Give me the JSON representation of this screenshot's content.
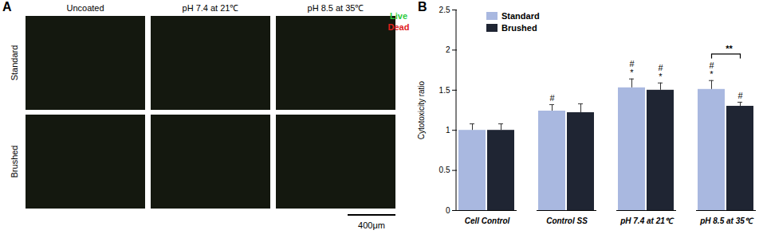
{
  "panel_a": {
    "label": "A",
    "columns": [
      "Uncoated",
      "pH 7.4 at 21℃",
      "pH 8.5 at 35℃"
    ],
    "rows": [
      "Standard",
      "Brushed"
    ],
    "legend": [
      {
        "text": "Live",
        "color": "#2ecc40"
      },
      {
        "text": "Dead",
        "color": "#e0201b"
      }
    ],
    "scale_bar": "400μm"
  },
  "panel_b_label": "B",
  "chart_data": {
    "type": "bar",
    "y_label": "Cytotoxicity ratio",
    "categories": [
      "Cell Control",
      "Control SS",
      "pH 7.4 at 21℃",
      "pH 8.5 at 35℃"
    ],
    "series": [
      {
        "name": "Standard",
        "color": "#a9b8e0",
        "values": [
          1.0,
          1.24,
          1.53,
          1.51
        ],
        "errors": [
          0.08,
          0.08,
          0.11,
          0.11
        ],
        "annotations": [
          [],
          [
            "#"
          ],
          [
            "#",
            "*"
          ],
          [
            "#",
            "*"
          ]
        ]
      },
      {
        "name": "Brushed",
        "color": "#1f2533",
        "values": [
          1.0,
          1.22,
          1.5,
          1.3
        ],
        "errors": [
          0.08,
          0.11,
          0.09,
          0.05
        ],
        "annotations": [
          [],
          [],
          [
            "#",
            "*"
          ],
          [
            "#"
          ]
        ]
      }
    ],
    "comparisons": [
      {
        "category": "pH 8.5 at 35℃",
        "between": [
          "Standard",
          "Brushed"
        ],
        "label": "**",
        "y": 1.95
      }
    ],
    "ylim": [
      0,
      2.5
    ],
    "yticks": [
      0,
      0.5,
      1,
      1.5,
      2,
      2.5
    ],
    "legend": "top-left",
    "grid": false
  }
}
